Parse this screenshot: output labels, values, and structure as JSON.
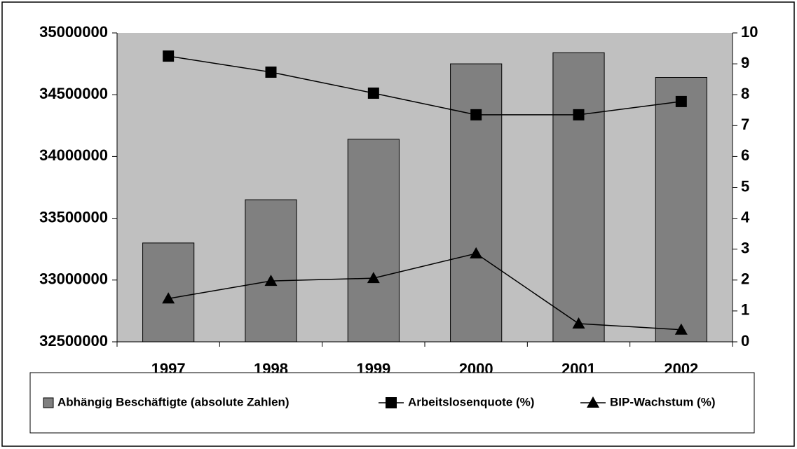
{
  "chart_data": {
    "type": "bar",
    "categories": [
      "1997",
      "1998",
      "1999",
      "2000",
      "2001",
      "2002"
    ],
    "series": [
      {
        "name": "Abhängig Beschäftigte (absolute Zahlen)",
        "type": "bar",
        "color": "#808080",
        "values": [
          33300000,
          33650000,
          34140000,
          34750000,
          34840000,
          34640000
        ]
      },
      {
        "name": "Arbeitslosenquote (%)",
        "type": "line",
        "marker": "square",
        "color": "#000000",
        "axis": "y2",
        "values": [
          9.25,
          8.73,
          8.05,
          7.35,
          7.35,
          7.78
        ]
      },
      {
        "name": "BIP-Wachstum (%)",
        "type": "line",
        "marker": "triangle",
        "color": "#000000",
        "axis": "y2",
        "values": [
          1.4,
          1.97,
          2.06,
          2.86,
          0.59,
          0.39
        ]
      }
    ],
    "ylim": [
      32500000,
      35000000
    ],
    "yticks": [
      32500000,
      33000000,
      33500000,
      34000000,
      34500000,
      35000000
    ],
    "y2lim": [
      0,
      10
    ],
    "y2ticks": [
      0,
      1,
      2,
      3,
      4,
      5,
      6,
      7,
      8,
      9,
      10
    ],
    "plot_background": "#c0c0c0",
    "legend": "bottom"
  }
}
